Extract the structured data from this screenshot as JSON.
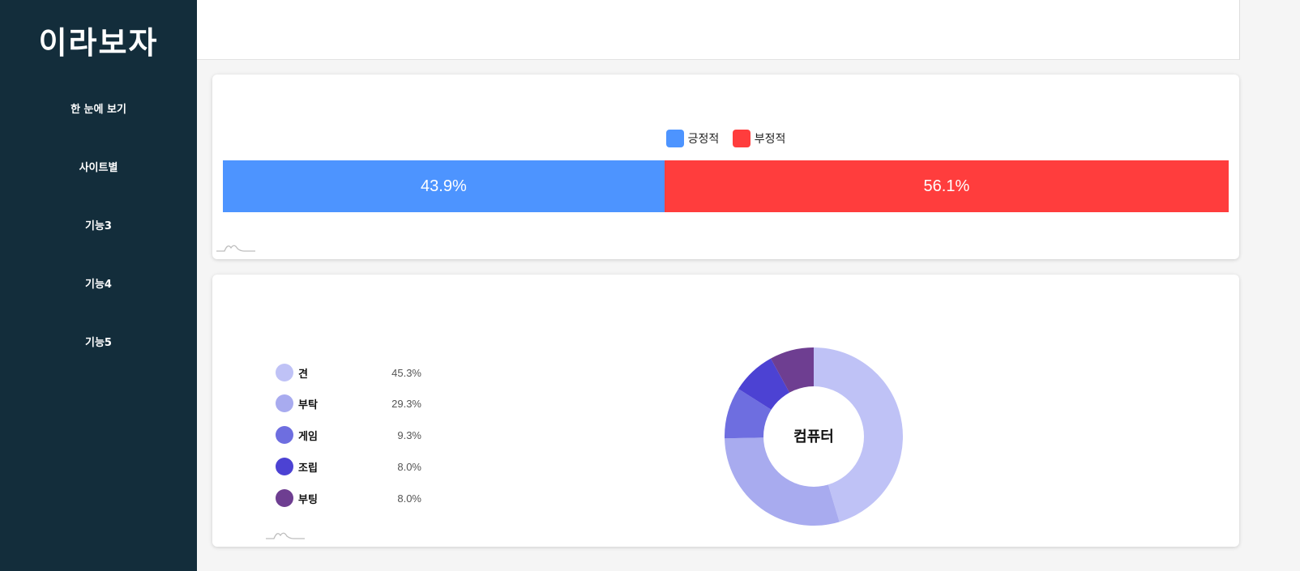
{
  "sidebar": {
    "logo": "이라보자",
    "items": [
      {
        "label": "한 눈에 보기"
      },
      {
        "label": "사이트별"
      },
      {
        "label": "기능3"
      },
      {
        "label": "기능4"
      },
      {
        "label": "기능5"
      }
    ],
    "bg_color": "#132d3b"
  },
  "sentiment": {
    "legend": [
      {
        "label": "긍정적",
        "color": "#4d94ff"
      },
      {
        "label": "부정적",
        "color": "#ff3d3d"
      }
    ],
    "segments": [
      {
        "value": 43.9,
        "label": "43.9%",
        "color": "#4d94ff"
      },
      {
        "value": 56.1,
        "label": "56.1%",
        "color": "#ff3d3d"
      }
    ]
  },
  "keywords": {
    "center_label": "컴퓨터",
    "items": [
      {
        "label": "견",
        "value": 45.3,
        "value_label": "45.3%",
        "color": "#bfc2f6"
      },
      {
        "label": "부탁",
        "value": 29.3,
        "value_label": "29.3%",
        "color": "#a8abef"
      },
      {
        "label": "게임",
        "value": 9.3,
        "value_label": "9.3%",
        "color": "#6e6ee0"
      },
      {
        "label": "조립",
        "value": 8.0,
        "value_label": "8.0%",
        "color": "#4c42d3"
      },
      {
        "label": "부팅",
        "value": 8.0,
        "value_label": "8.0%",
        "color": "#6e3e91"
      }
    ]
  },
  "chart_data": [
    {
      "type": "bar",
      "categories": [
        "긍정적",
        "부정적"
      ],
      "values": [
        43.9,
        56.1
      ],
      "stacked": true,
      "orientation": "horizontal",
      "legend": "top-center"
    },
    {
      "type": "pie",
      "categories": [
        "견",
        "부탁",
        "게임",
        "조립",
        "부팅"
      ],
      "values": [
        45.3,
        29.3,
        9.3,
        8.0,
        8.0
      ],
      "donut": true,
      "center_label": "컴퓨터",
      "legend": "left"
    }
  ]
}
